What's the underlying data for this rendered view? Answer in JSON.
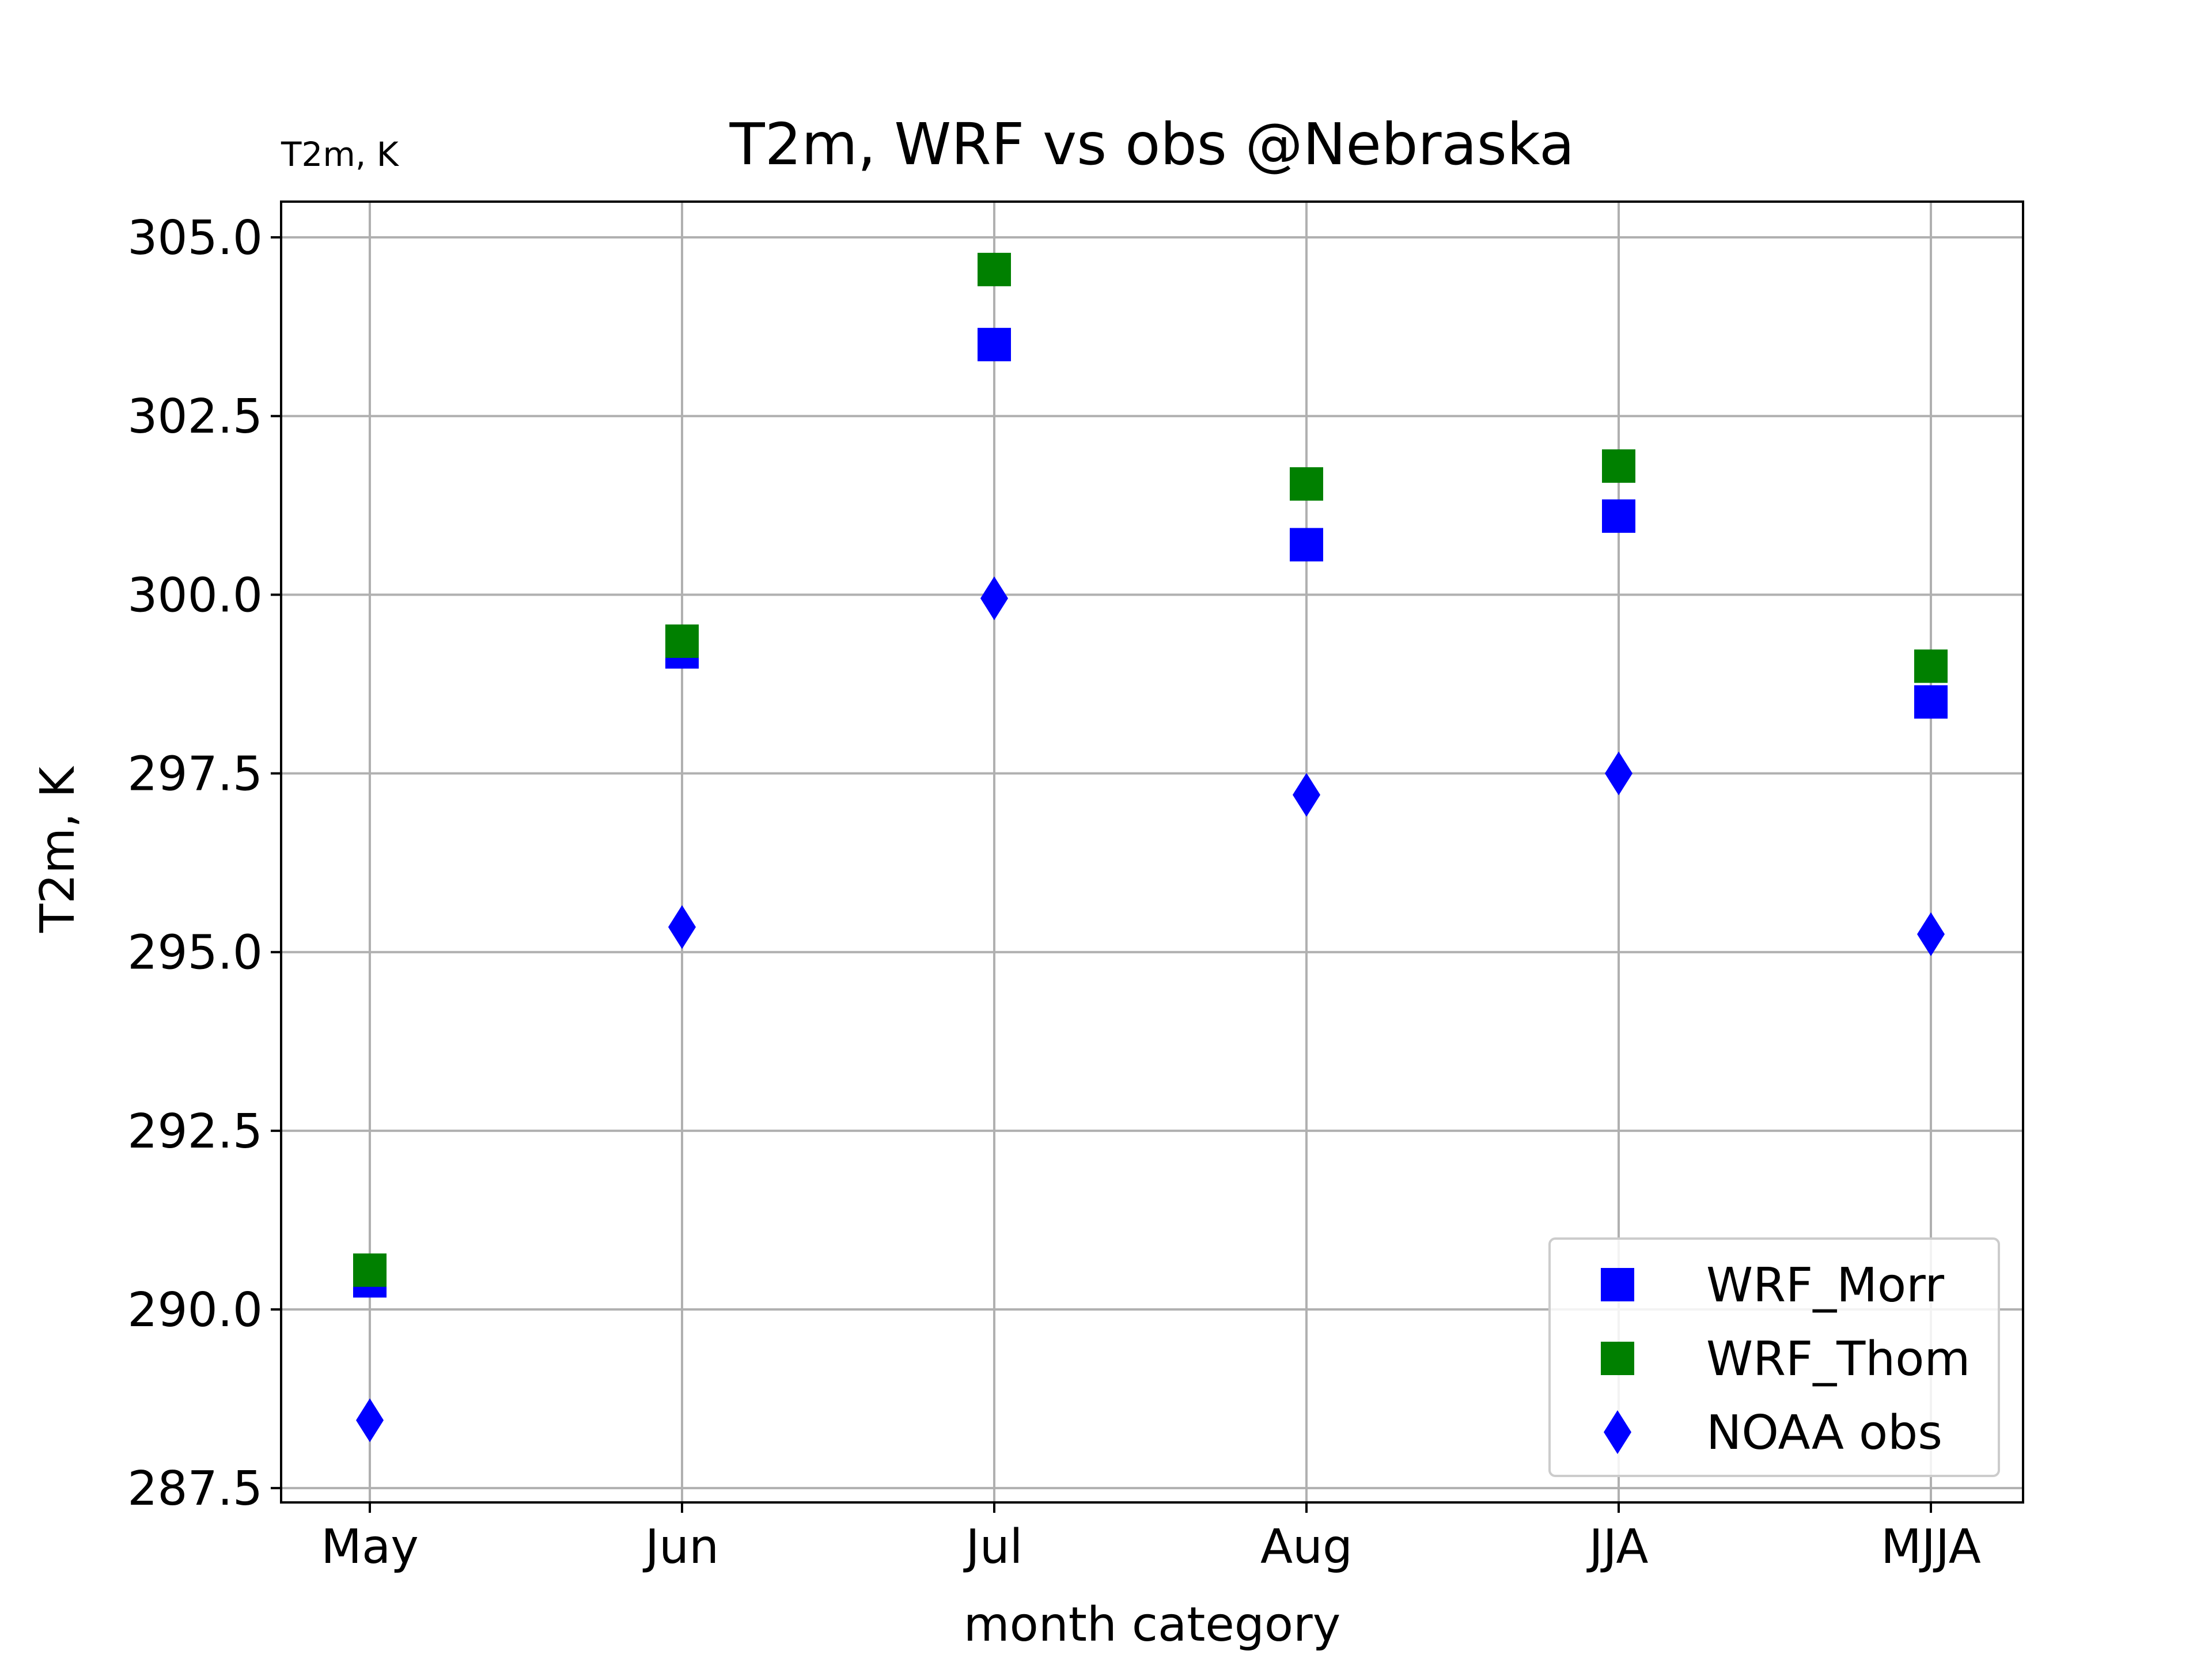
{
  "chart_data": {
    "type": "scatter",
    "title": "T2m, WRF vs obs @Nebraska",
    "corner_label": "T2m, K",
    "xlabel": "month category",
    "ylabel": "T2m, K",
    "categories": [
      "May",
      "Jun",
      "Jul",
      "Aug",
      "JJA",
      "MJJA"
    ],
    "ylim": [
      287.3,
      305.5
    ],
    "yticks": [
      "287.5",
      "290.0",
      "292.5",
      "295.0",
      "297.5",
      "300.0",
      "302.5",
      "305.0"
    ],
    "grid": true,
    "legend_position": "lower-right",
    "series": [
      {
        "name": "WRF_Morr",
        "marker": "square",
        "color": "#0000ff",
        "values": [
          290.4,
          299.2,
          303.5,
          300.7,
          301.1,
          298.5
        ]
      },
      {
        "name": "WRF_Thom",
        "marker": "square",
        "color": "#008000",
        "values": [
          290.55,
          299.35,
          304.55,
          301.55,
          301.8,
          299.0
        ]
      },
      {
        "name": "NOAA obs",
        "marker": "diamond",
        "color": "#0000ff",
        "values": [
          288.45,
          295.35,
          299.95,
          297.2,
          297.5,
          295.25
        ]
      }
    ]
  }
}
